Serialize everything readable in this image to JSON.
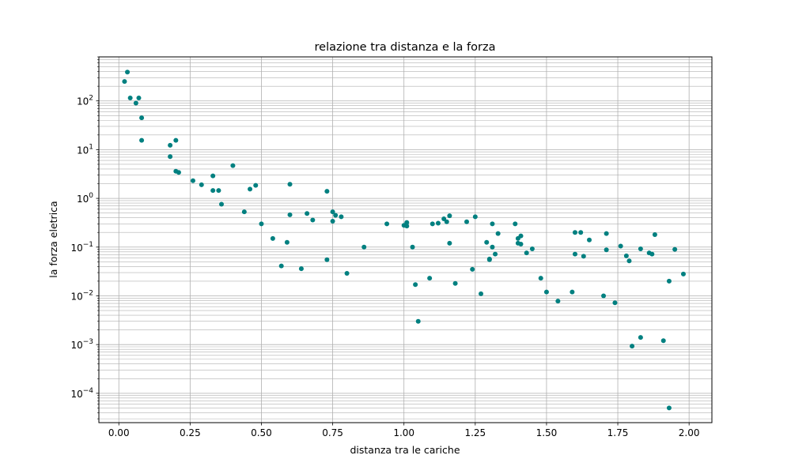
{
  "chart_data": {
    "type": "scatter",
    "title": "relazione tra distanza e la forza",
    "xlabel": "distanza tra le cariche",
    "ylabel": "la forza eletrica",
    "xlim": [
      -0.07,
      2.08
    ],
    "ylim": [
      2.5e-05,
      800
    ],
    "yscale": "log",
    "grid": "major and minor",
    "marker_color": "#008080",
    "xticks": [
      0.0,
      0.25,
      0.5,
      0.75,
      1.0,
      1.25,
      1.5,
      1.75,
      2.0
    ],
    "xtick_labels": [
      "0.00",
      "0.25",
      "0.50",
      "0.75",
      "1.00",
      "1.25",
      "1.50",
      "1.75",
      "2.00"
    ],
    "yticks": [
      {
        "value": 0.0001,
        "base": "10",
        "exp": "−4"
      },
      {
        "value": 0.001,
        "base": "10",
        "exp": "−3"
      },
      {
        "value": 0.01,
        "base": "10",
        "exp": "−2"
      },
      {
        "value": 0.1,
        "base": "10",
        "exp": "−1"
      },
      {
        "value": 1,
        "base": "10",
        "exp": "0"
      },
      {
        "value": 10,
        "base": "10",
        "exp": "1"
      },
      {
        "value": 100,
        "base": "10",
        "exp": "2"
      }
    ],
    "points": [
      [
        0.02,
        250
      ],
      [
        0.03,
        390
      ],
      [
        0.04,
        115
      ],
      [
        0.06,
        90
      ],
      [
        0.07,
        115
      ],
      [
        0.08,
        45
      ],
      [
        0.08,
        15.5
      ],
      [
        0.18,
        12.3
      ],
      [
        0.18,
        7.2
      ],
      [
        0.2,
        15.5
      ],
      [
        0.2,
        3.6
      ],
      [
        0.21,
        3.4
      ],
      [
        0.26,
        2.3
      ],
      [
        0.29,
        1.9
      ],
      [
        0.33,
        2.9
      ],
      [
        0.33,
        1.45
      ],
      [
        0.35,
        1.45
      ],
      [
        0.36,
        0.76
      ],
      [
        0.4,
        4.7
      ],
      [
        0.44,
        0.53
      ],
      [
        0.46,
        1.55
      ],
      [
        0.48,
        1.85
      ],
      [
        0.5,
        0.3
      ],
      [
        0.54,
        0.15
      ],
      [
        0.57,
        0.041
      ],
      [
        0.59,
        0.125
      ],
      [
        0.6,
        0.46
      ],
      [
        0.6,
        1.95
      ],
      [
        0.64,
        0.036
      ],
      [
        0.66,
        0.49
      ],
      [
        0.68,
        0.36
      ],
      [
        0.73,
        1.4
      ],
      [
        0.73,
        0.055
      ],
      [
        0.75,
        0.53
      ],
      [
        0.75,
        0.34
      ],
      [
        0.76,
        0.45
      ],
      [
        0.78,
        0.42
      ],
      [
        0.8,
        0.029
      ],
      [
        0.86,
        0.1
      ],
      [
        0.94,
        0.3
      ],
      [
        1.0,
        0.28
      ],
      [
        1.01,
        0.27
      ],
      [
        1.01,
        0.32
      ],
      [
        1.03,
        0.1
      ],
      [
        1.04,
        0.017
      ],
      [
        1.05,
        0.003
      ],
      [
        1.09,
        0.023
      ],
      [
        1.1,
        0.3
      ],
      [
        1.12,
        0.31
      ],
      [
        1.14,
        0.38
      ],
      [
        1.15,
        0.33
      ],
      [
        1.16,
        0.44
      ],
      [
        1.16,
        0.12
      ],
      [
        1.18,
        0.018
      ],
      [
        1.22,
        0.33
      ],
      [
        1.24,
        0.035
      ],
      [
        1.25,
        0.42
      ],
      [
        1.27,
        0.011
      ],
      [
        1.29,
        0.125
      ],
      [
        1.3,
        0.055
      ],
      [
        1.3,
        0.057
      ],
      [
        1.31,
        0.1
      ],
      [
        1.31,
        0.3
      ],
      [
        1.32,
        0.072
      ],
      [
        1.33,
        0.19
      ],
      [
        1.39,
        0.3
      ],
      [
        1.4,
        0.15
      ],
      [
        1.4,
        0.12
      ],
      [
        1.41,
        0.17
      ],
      [
        1.41,
        0.115
      ],
      [
        1.43,
        0.076
      ],
      [
        1.45,
        0.092
      ],
      [
        1.48,
        0.023
      ],
      [
        1.5,
        0.012
      ],
      [
        1.54,
        0.0078
      ],
      [
        1.59,
        0.012
      ],
      [
        1.6,
        0.2
      ],
      [
        1.6,
        0.072
      ],
      [
        1.62,
        0.2
      ],
      [
        1.63,
        0.065
      ],
      [
        1.65,
        0.14
      ],
      [
        1.7,
        0.01
      ],
      [
        1.71,
        0.19
      ],
      [
        1.71,
        0.088
      ],
      [
        1.74,
        0.0072
      ],
      [
        1.76,
        0.105
      ],
      [
        1.78,
        0.066
      ],
      [
        1.79,
        0.052
      ],
      [
        1.8,
        0.00093
      ],
      [
        1.83,
        0.0014
      ],
      [
        1.83,
        0.092
      ],
      [
        1.86,
        0.076
      ],
      [
        1.87,
        0.072
      ],
      [
        1.88,
        0.18
      ],
      [
        1.91,
        0.0012
      ],
      [
        1.93,
        0.02
      ],
      [
        1.93,
        5e-05
      ],
      [
        1.95,
        0.09
      ],
      [
        1.98,
        0.028
      ]
    ]
  }
}
